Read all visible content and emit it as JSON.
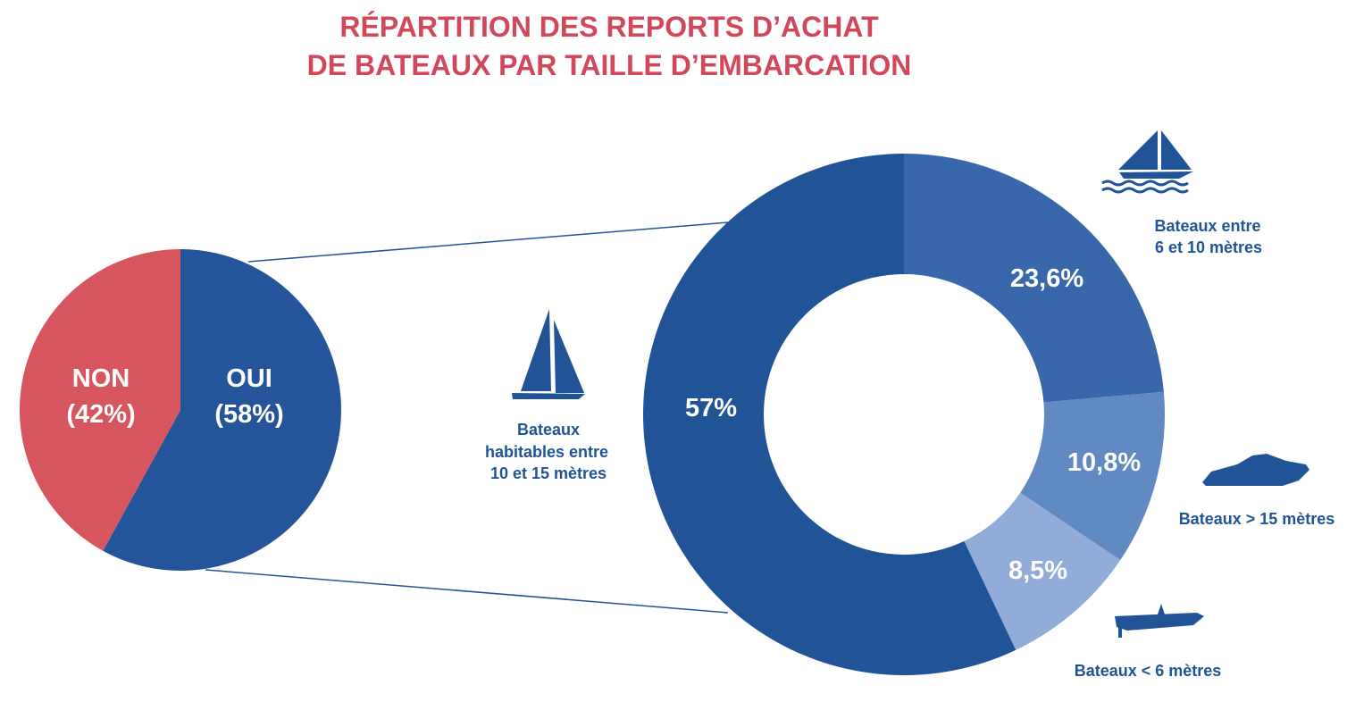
{
  "chart_data": [
    {
      "type": "pie",
      "categories": [
        "OUI",
        "NON"
      ],
      "values": [
        58,
        42
      ],
      "labels": [
        [
          "OUI",
          "(58%)"
        ],
        [
          "NON",
          "(42%)"
        ]
      ],
      "colors": [
        "#24549a",
        "#d6555e"
      ]
    },
    {
      "type": "donut",
      "title": [
        "RÉPARTITION DES REPORTS D’ACHAT",
        "DE BATEAUX PAR TAILLE D’EMBARCATION"
      ],
      "categories": [
        "Bateaux entre 6 et 10 mètres",
        "Bateaux > 15 mètres",
        "Bateaux < 6 mètres",
        "Bateaux habitables entre 10 et 15 mètres"
      ],
      "category_lines": [
        [
          "Bateaux entre",
          "6 et 10 mètres"
        ],
        [
          "Bateaux > 15 mètres"
        ],
        [
          "Bateaux < 6 mètres"
        ],
        [
          "Bateaux",
          "habitables entre",
          "10 et 15 mètres"
        ]
      ],
      "values": [
        23.6,
        10.8,
        8.5,
        57
      ],
      "value_labels": [
        "23,6%",
        "10,8%",
        "8,5%",
        "57%"
      ],
      "colors": [
        "#3868ab",
        "#628ac2",
        "#91acd8",
        "#215497"
      ],
      "icons": [
        "sailboat-waves-icon",
        "yacht-icon",
        "dinghy-icon",
        "sailboat-icon"
      ]
    }
  ]
}
